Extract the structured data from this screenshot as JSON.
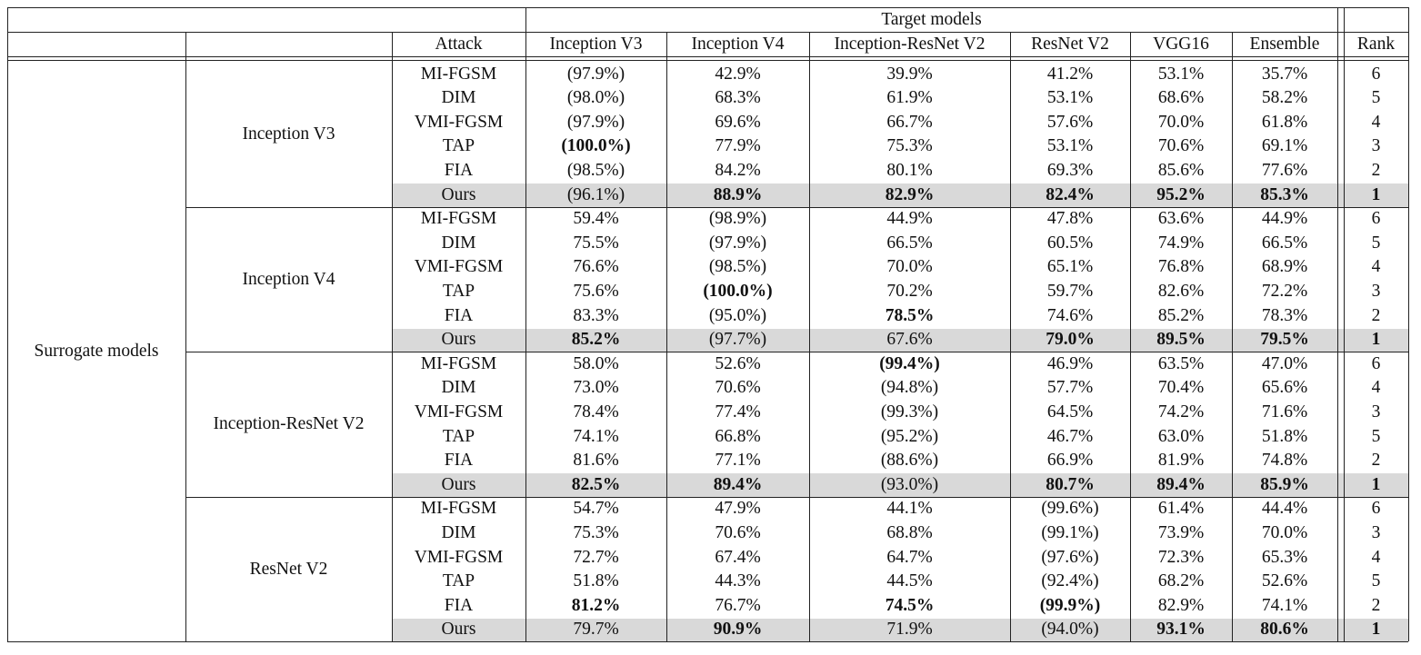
{
  "header": {
    "group_label": "Target models",
    "columns": [
      "Attack",
      "Inception V3",
      "Inception V4",
      "Inception-ResNet V2",
      "ResNet V2",
      "VGG16",
      "Ensemble",
      "Rank"
    ]
  },
  "surrogate_label": "Surrogate models",
  "groups": [
    {
      "surrogate": "Inception V3",
      "rows": [
        {
          "attack": "MI-FGSM",
          "values": [
            "(97.9%)",
            "42.9%",
            "39.9%",
            "41.2%",
            "53.1%",
            "35.7%"
          ],
          "rank": "6",
          "bold": []
        },
        {
          "attack": "DIM",
          "values": [
            "(98.0%)",
            "68.3%",
            "61.9%",
            "53.1%",
            "68.6%",
            "58.2%"
          ],
          "rank": "5",
          "bold": []
        },
        {
          "attack": "VMI-FGSM",
          "values": [
            "(97.9%)",
            "69.6%",
            "66.7%",
            "57.6%",
            "70.0%",
            "61.8%"
          ],
          "rank": "4",
          "bold": []
        },
        {
          "attack": "TAP",
          "values": [
            "(100.0%)",
            "77.9%",
            "75.3%",
            "53.1%",
            "70.6%",
            "69.1%"
          ],
          "rank": "3",
          "bold": [
            0
          ]
        },
        {
          "attack": "FIA",
          "values": [
            "(98.5%)",
            "84.2%",
            "80.1%",
            "69.3%",
            "85.6%",
            "77.6%"
          ],
          "rank": "2",
          "bold": []
        },
        {
          "attack": "Ours",
          "values": [
            "(96.1%)",
            "88.9%",
            "82.9%",
            "82.4%",
            "95.2%",
            "85.3%"
          ],
          "rank": "1",
          "bold": [
            1,
            2,
            3,
            4,
            5,
            6
          ],
          "shaded": true
        }
      ]
    },
    {
      "surrogate": "Inception V4",
      "rows": [
        {
          "attack": "MI-FGSM",
          "values": [
            "59.4%",
            "(98.9%)",
            "44.9%",
            "47.8%",
            "63.6%",
            "44.9%"
          ],
          "rank": "6",
          "bold": []
        },
        {
          "attack": "DIM",
          "values": [
            "75.5%",
            "(97.9%)",
            "66.5%",
            "60.5%",
            "74.9%",
            "66.5%"
          ],
          "rank": "5",
          "bold": []
        },
        {
          "attack": "VMI-FGSM",
          "values": [
            "76.6%",
            "(98.5%)",
            "70.0%",
            "65.1%",
            "76.8%",
            "68.9%"
          ],
          "rank": "4",
          "bold": []
        },
        {
          "attack": "TAP",
          "values": [
            "75.6%",
            "(100.0%)",
            "70.2%",
            "59.7%",
            "82.6%",
            "72.2%"
          ],
          "rank": "3",
          "bold": [
            1
          ]
        },
        {
          "attack": "FIA",
          "values": [
            "83.3%",
            "(95.0%)",
            "78.5%",
            "74.6%",
            "85.2%",
            "78.3%"
          ],
          "rank": "2",
          "bold": [
            2
          ]
        },
        {
          "attack": "Ours",
          "values": [
            "85.2%",
            "(97.7%)",
            "67.6%",
            "79.0%",
            "89.5%",
            "79.5%"
          ],
          "rank": "1",
          "bold": [
            0,
            3,
            4,
            5,
            6
          ],
          "shaded": true
        }
      ]
    },
    {
      "surrogate": "Inception-ResNet V2",
      "rows": [
        {
          "attack": "MI-FGSM",
          "values": [
            "58.0%",
            "52.6%",
            "(99.4%)",
            "46.9%",
            "63.5%",
            "47.0%"
          ],
          "rank": "6",
          "bold": [
            2
          ]
        },
        {
          "attack": "DIM",
          "values": [
            "73.0%",
            "70.6%",
            "(94.8%)",
            "57.7%",
            "70.4%",
            "65.6%"
          ],
          "rank": "4",
          "bold": []
        },
        {
          "attack": "VMI-FGSM",
          "values": [
            "78.4%",
            "77.4%",
            "(99.3%)",
            "64.5%",
            "74.2%",
            "71.6%"
          ],
          "rank": "3",
          "bold": []
        },
        {
          "attack": "TAP",
          "values": [
            "74.1%",
            "66.8%",
            "(95.2%)",
            "46.7%",
            "63.0%",
            "51.8%"
          ],
          "rank": "5",
          "bold": []
        },
        {
          "attack": "FIA",
          "values": [
            "81.6%",
            "77.1%",
            "(88.6%)",
            "66.9%",
            "81.9%",
            "74.8%"
          ],
          "rank": "2",
          "bold": []
        },
        {
          "attack": "Ours",
          "values": [
            "82.5%",
            "89.4%",
            "(93.0%)",
            "80.7%",
            "89.4%",
            "85.9%"
          ],
          "rank": "1",
          "bold": [
            0,
            1,
            3,
            4,
            5,
            6
          ],
          "shaded": true
        }
      ]
    },
    {
      "surrogate": "ResNet V2",
      "rows": [
        {
          "attack": "MI-FGSM",
          "values": [
            "54.7%",
            "47.9%",
            "44.1%",
            "(99.6%)",
            "61.4%",
            "44.4%"
          ],
          "rank": "6",
          "bold": []
        },
        {
          "attack": "DIM",
          "values": [
            "75.3%",
            "70.6%",
            "68.8%",
            "(99.1%)",
            "73.9%",
            "70.0%"
          ],
          "rank": "3",
          "bold": []
        },
        {
          "attack": "VMI-FGSM",
          "values": [
            "72.7%",
            "67.4%",
            "64.7%",
            "(97.6%)",
            "72.3%",
            "65.3%"
          ],
          "rank": "4",
          "bold": []
        },
        {
          "attack": "TAP",
          "values": [
            "51.8%",
            "44.3%",
            "44.5%",
            "(92.4%)",
            "68.2%",
            "52.6%"
          ],
          "rank": "5",
          "bold": []
        },
        {
          "attack": "FIA",
          "values": [
            "81.2%",
            "76.7%",
            "74.5%",
            "(99.9%)",
            "82.9%",
            "74.1%"
          ],
          "rank": "2",
          "bold": [
            0,
            2,
            3
          ]
        },
        {
          "attack": "Ours",
          "values": [
            "79.7%",
            "90.9%",
            "71.9%",
            "(94.0%)",
            "93.1%",
            "80.6%"
          ],
          "rank": "1",
          "bold": [
            1,
            4,
            5,
            6
          ],
          "shaded": true
        }
      ]
    }
  ]
}
